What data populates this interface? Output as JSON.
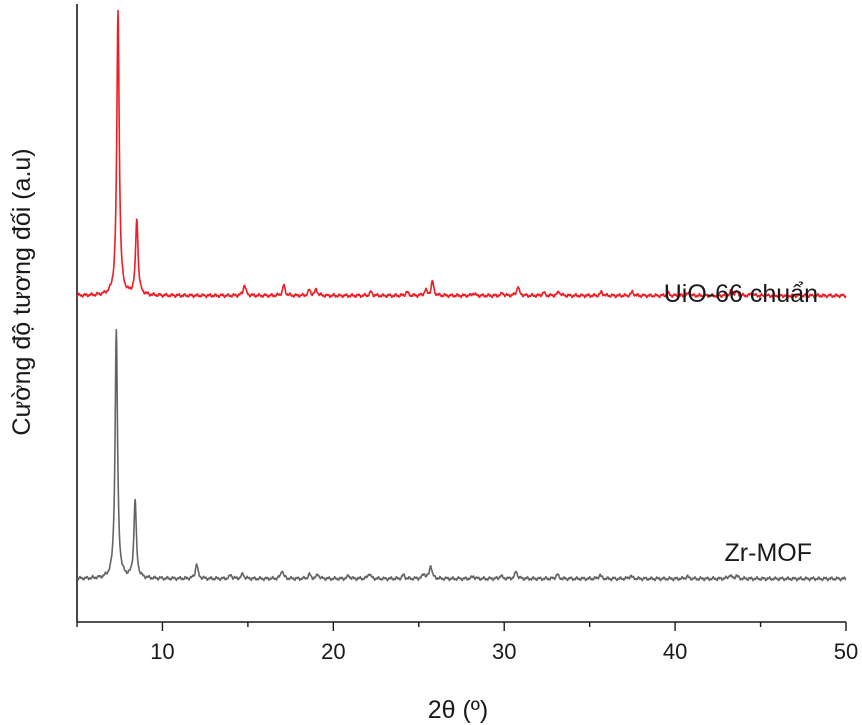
{
  "chart_data": {
    "type": "line",
    "title": "",
    "xlabel": "2θ (º)",
    "ylabel": "Cường độ tương đối (a.u)",
    "xlim": [
      5,
      50
    ],
    "ylim": [
      0,
      100
    ],
    "x_ticks": [
      10,
      20,
      30,
      40,
      50
    ],
    "y_ticks": [],
    "grid": false,
    "legend": "none (series labelled directly on the plot)",
    "series": [
      {
        "name": "UiO-66 chuẩn",
        "color": "#ee1c24",
        "baseline": 52.8,
        "peaks": [
          {
            "x": 7.4,
            "height": 46.0
          },
          {
            "x": 8.5,
            "height": 12.3
          },
          {
            "x": 14.8,
            "height": 1.8
          },
          {
            "x": 17.1,
            "height": 1.7
          },
          {
            "x": 18.6,
            "height": 0.9
          },
          {
            "x": 19.0,
            "height": 1.0
          },
          {
            "x": 22.2,
            "height": 0.6
          },
          {
            "x": 24.3,
            "height": 0.6
          },
          {
            "x": 25.4,
            "height": 0.9
          },
          {
            "x": 25.8,
            "height": 2.3
          },
          {
            "x": 28.2,
            "height": 0.4
          },
          {
            "x": 29.9,
            "height": 0.4
          },
          {
            "x": 30.8,
            "height": 1.5
          },
          {
            "x": 32.3,
            "height": 0.5
          },
          {
            "x": 33.2,
            "height": 0.7
          },
          {
            "x": 35.7,
            "height": 0.6
          },
          {
            "x": 37.5,
            "height": 0.6
          },
          {
            "x": 39.6,
            "height": 0.4
          },
          {
            "x": 40.8,
            "height": 0.4
          },
          {
            "x": 43.3,
            "height": 0.9
          },
          {
            "x": 43.6,
            "height": 0.6
          },
          {
            "x": 44.5,
            "height": 0.4
          }
        ]
      },
      {
        "name": "Zr-MOF",
        "color": "#646464",
        "baseline": 7.0,
        "peaks": [
          {
            "x": 7.3,
            "height": 40.2
          },
          {
            "x": 8.4,
            "height": 12.6
          },
          {
            "x": 12.0,
            "height": 2.4
          },
          {
            "x": 14.0,
            "height": 0.6
          },
          {
            "x": 14.7,
            "height": 0.8
          },
          {
            "x": 17.0,
            "height": 1.4
          },
          {
            "x": 18.6,
            "height": 0.7
          },
          {
            "x": 19.1,
            "height": 0.7
          },
          {
            "x": 20.9,
            "height": 0.5
          },
          {
            "x": 22.1,
            "height": 0.9
          },
          {
            "x": 24.1,
            "height": 0.6
          },
          {
            "x": 25.3,
            "height": 0.8
          },
          {
            "x": 25.7,
            "height": 2.2
          },
          {
            "x": 28.2,
            "height": 0.4
          },
          {
            "x": 29.8,
            "height": 0.5
          },
          {
            "x": 30.7,
            "height": 1.2
          },
          {
            "x": 33.1,
            "height": 0.7
          },
          {
            "x": 35.6,
            "height": 0.6
          },
          {
            "x": 37.4,
            "height": 0.5
          },
          {
            "x": 40.7,
            "height": 0.4
          },
          {
            "x": 43.2,
            "height": 0.6
          },
          {
            "x": 43.6,
            "height": 0.5
          }
        ]
      }
    ]
  },
  "labels": {
    "series_top": "UiO-66 chuẩn",
    "series_bottom": "Zr-MOF"
  }
}
